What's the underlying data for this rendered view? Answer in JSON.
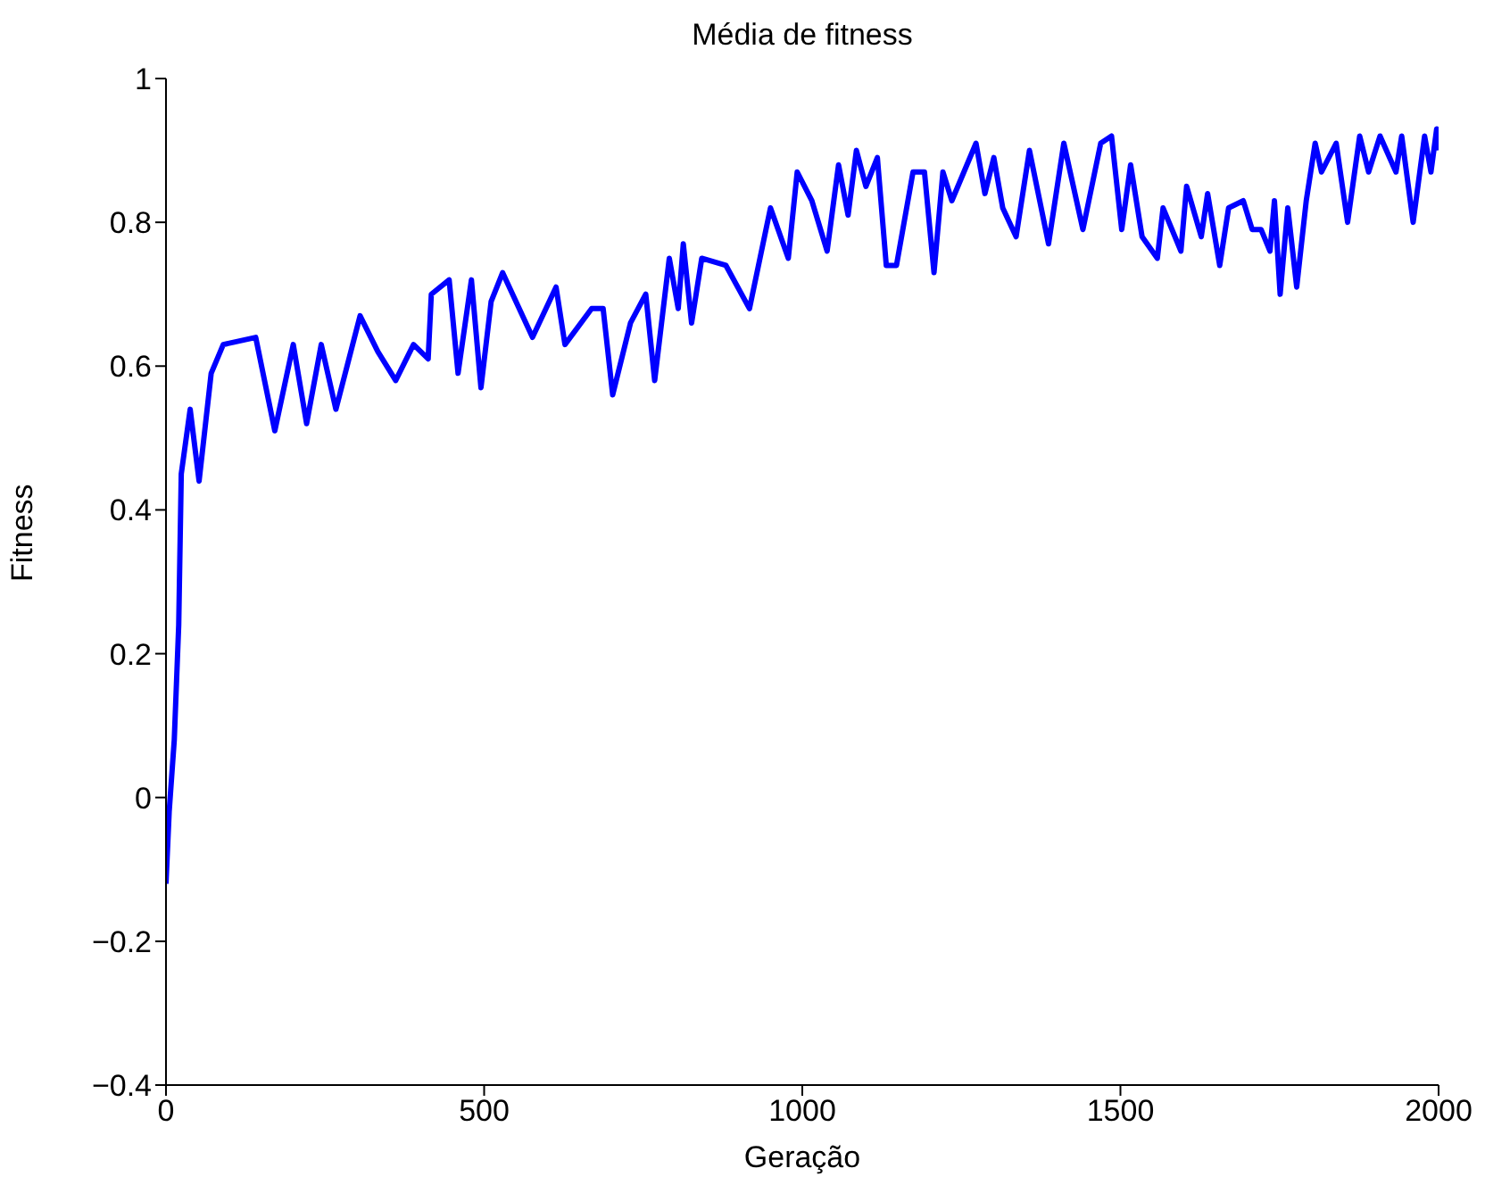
{
  "chart_data": {
    "type": "line",
    "title": "Média de fitness",
    "xlabel": "Geração",
    "ylabel": "Fitness",
    "xlim": [
      0,
      2000
    ],
    "xticks": [
      0,
      500,
      1000,
      1500,
      2000
    ],
    "ylim": [
      -0.4,
      1
    ],
    "yticks": [
      -0.4,
      -0.2,
      0,
      0.2,
      0.4,
      0.6,
      0.8,
      1
    ],
    "grid": false,
    "legend": false,
    "marker": "none",
    "line_style": "solid",
    "series": [
      {
        "color": "#0000ff",
        "x": [
          0,
          5,
          13,
          20,
          24,
          38,
          52,
          71,
          90,
          141,
          171,
          200,
          221,
          244,
          267,
          305,
          333,
          361,
          389,
          412,
          417,
          445,
          459,
          480,
          495,
          511,
          529,
          576,
          613,
          627,
          669,
          687,
          702,
          730,
          754,
          768,
          791,
          805,
          813,
          826,
          842,
          880,
          917,
          950,
          978,
          992,
          1015,
          1039,
          1057,
          1072,
          1085,
          1100,
          1118,
          1132,
          1148,
          1174,
          1192,
          1207,
          1221,
          1235,
          1273,
          1287,
          1301,
          1315,
          1336,
          1357,
          1387,
          1411,
          1441,
          1469,
          1486,
          1502,
          1516,
          1534,
          1558,
          1567,
          1595,
          1604,
          1627,
          1637,
          1656,
          1670,
          1693,
          1707,
          1721,
          1735,
          1742,
          1751,
          1763,
          1777,
          1792,
          1806,
          1816,
          1839,
          1857,
          1876,
          1890,
          1908,
          1933,
          1942,
          1960,
          1978,
          1988,
          1997,
          2000
        ],
        "values": [
          -0.12,
          -0.02,
          0.08,
          0.24,
          0.45,
          0.54,
          0.44,
          0.59,
          0.63,
          0.64,
          0.51,
          0.63,
          0.52,
          0.63,
          0.54,
          0.67,
          0.62,
          0.58,
          0.63,
          0.61,
          0.7,
          0.72,
          0.59,
          0.72,
          0.57,
          0.69,
          0.73,
          0.64,
          0.71,
          0.63,
          0.68,
          0.68,
          0.56,
          0.66,
          0.7,
          0.58,
          0.75,
          0.68,
          0.77,
          0.66,
          0.75,
          0.74,
          0.68,
          0.82,
          0.75,
          0.87,
          0.83,
          0.76,
          0.88,
          0.81,
          0.9,
          0.85,
          0.89,
          0.74,
          0.74,
          0.87,
          0.87,
          0.73,
          0.87,
          0.83,
          0.91,
          0.84,
          0.89,
          0.82,
          0.78,
          0.9,
          0.77,
          0.91,
          0.79,
          0.91,
          0.92,
          0.79,
          0.88,
          0.78,
          0.75,
          0.82,
          0.76,
          0.85,
          0.78,
          0.84,
          0.74,
          0.82,
          0.83,
          0.79,
          0.79,
          0.76,
          0.83,
          0.7,
          0.82,
          0.71,
          0.83,
          0.91,
          0.87,
          0.91,
          0.8,
          0.92,
          0.87,
          0.92,
          0.87,
          0.92,
          0.8,
          0.92,
          0.87,
          0.93,
          0.9
        ]
      }
    ]
  }
}
